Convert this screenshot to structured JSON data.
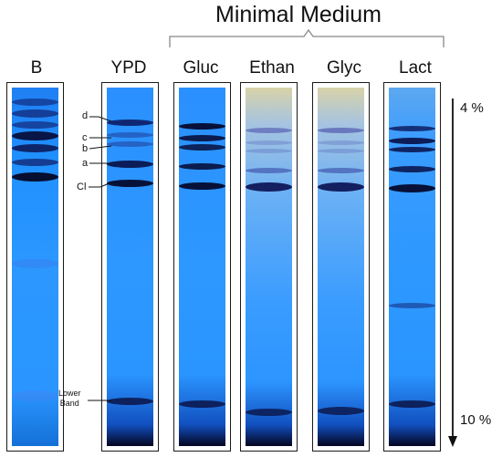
{
  "header": {
    "title": "Minimal Medium"
  },
  "lanes": [
    {
      "label": "B"
    },
    {
      "label": "YPD"
    },
    {
      "label": "Gluc"
    },
    {
      "label": "Ethan"
    },
    {
      "label": "Glyc"
    },
    {
      "label": "Lact"
    }
  ],
  "band_labels": {
    "d": "d",
    "c": "c",
    "b": "b",
    "a": "a",
    "cl": "Cl",
    "lower": "Lower\nBand"
  },
  "gradient": {
    "top": "4 %",
    "bottom": "10 %"
  },
  "colors": {
    "gel_blue": "#1e90ff",
    "gel_light": "#8ecbfa",
    "band_dark": "#0a0a3a",
    "line": "#111111"
  }
}
